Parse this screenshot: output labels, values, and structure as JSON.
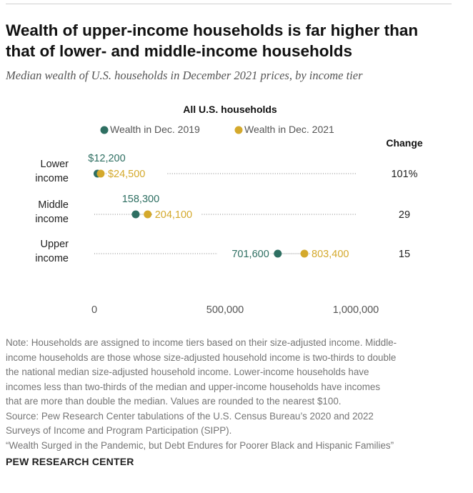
{
  "title_line1": "Wealth of upper-income households is far higher than",
  "title_line2": "that of lower- and middle-income households",
  "subtitle": "Median wealth of U.S. households in December 2021 prices, by income tier",
  "change_header": "Change",
  "colors": {
    "y2019": "#2e6f62",
    "y2021": "#d4a92c",
    "text": "#222222",
    "dots": "#9a9a9a"
  },
  "chart_data": {
    "type": "scatter",
    "title": "All U.S. households",
    "categories": [
      [
        "Lower",
        "income"
      ],
      [
        "Middle",
        "income"
      ],
      [
        "Upper",
        "income"
      ]
    ],
    "series": [
      {
        "name": "Wealth in Dec. 2019",
        "values": [
          12200,
          158300,
          701600
        ],
        "labels": [
          "$12,200",
          "158,300",
          "701,600"
        ],
        "color": "#2e6f62"
      },
      {
        "name": "Wealth in Dec. 2021",
        "values": [
          24500,
          204100,
          803400
        ],
        "labels": [
          "$24,500",
          "204,100",
          "803,400"
        ],
        "color": "#d4a92c"
      }
    ],
    "change": [
      "101%",
      "29",
      "15"
    ],
    "xlim": [
      0,
      1000000
    ],
    "xticks": [
      0,
      500000,
      1000000
    ],
    "xtick_labels": [
      "0",
      "500,000",
      "1,000,000"
    ],
    "legend": "top"
  },
  "note_lines": [
    "Note: Households are assigned to income tiers based on their size-adjusted income. Middle-",
    "income households are those whose size-adjusted household income is two-thirds to double",
    "the national median size-adjusted household income. Lower-income households have",
    "incomes less than two-thirds of the median and upper-income households have incomes",
    "that are more than double the median. Values are rounded to the nearest $100.",
    "Source: Pew Research Center tabulations of the U.S. Census Bureau’s 2020 and 2022",
    "Surveys of Income and Program Participation (SIPP).",
    "“Wealth Surged in the Pandemic, but Debt Endures for Poorer Black and Hispanic Families”"
  ],
  "brand": "PEW RESEARCH CENTER"
}
